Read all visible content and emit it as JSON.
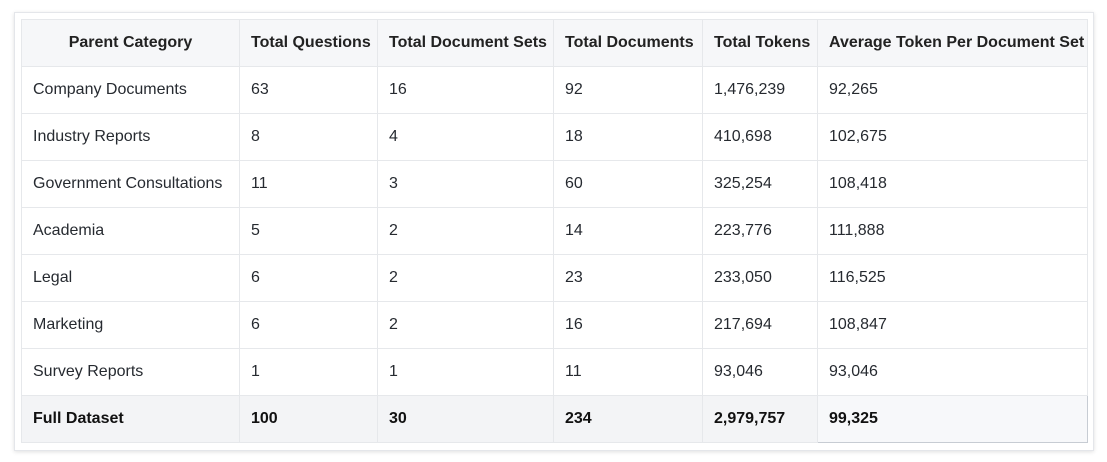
{
  "table": {
    "headers": [
      "Parent Category",
      "Total Questions",
      "Total Document Sets",
      "Total Documents",
      "Total Tokens",
      "Average Token Per Document Set"
    ],
    "rows": [
      [
        "Company Documents",
        "63",
        "16",
        "92",
        "1,476,239",
        "92,265"
      ],
      [
        "Industry Reports",
        "8",
        "4",
        "18",
        "410,698",
        "102,675"
      ],
      [
        "Government Consultations",
        "11",
        "3",
        "60",
        "325,254",
        "108,418"
      ],
      [
        "Academia",
        "5",
        "2",
        "14",
        "223,776",
        "111,888"
      ],
      [
        "Legal",
        "6",
        "2",
        "23",
        "233,050",
        "116,525"
      ],
      [
        "Marketing",
        "6",
        "2",
        "16",
        "217,694",
        "108,847"
      ],
      [
        "Survey Reports",
        "1",
        "1",
        "11",
        "93,046",
        "93,046"
      ]
    ],
    "total_row": [
      "Full Dataset",
      "100",
      "30",
      "234",
      "2,979,757",
      "99,325"
    ]
  }
}
